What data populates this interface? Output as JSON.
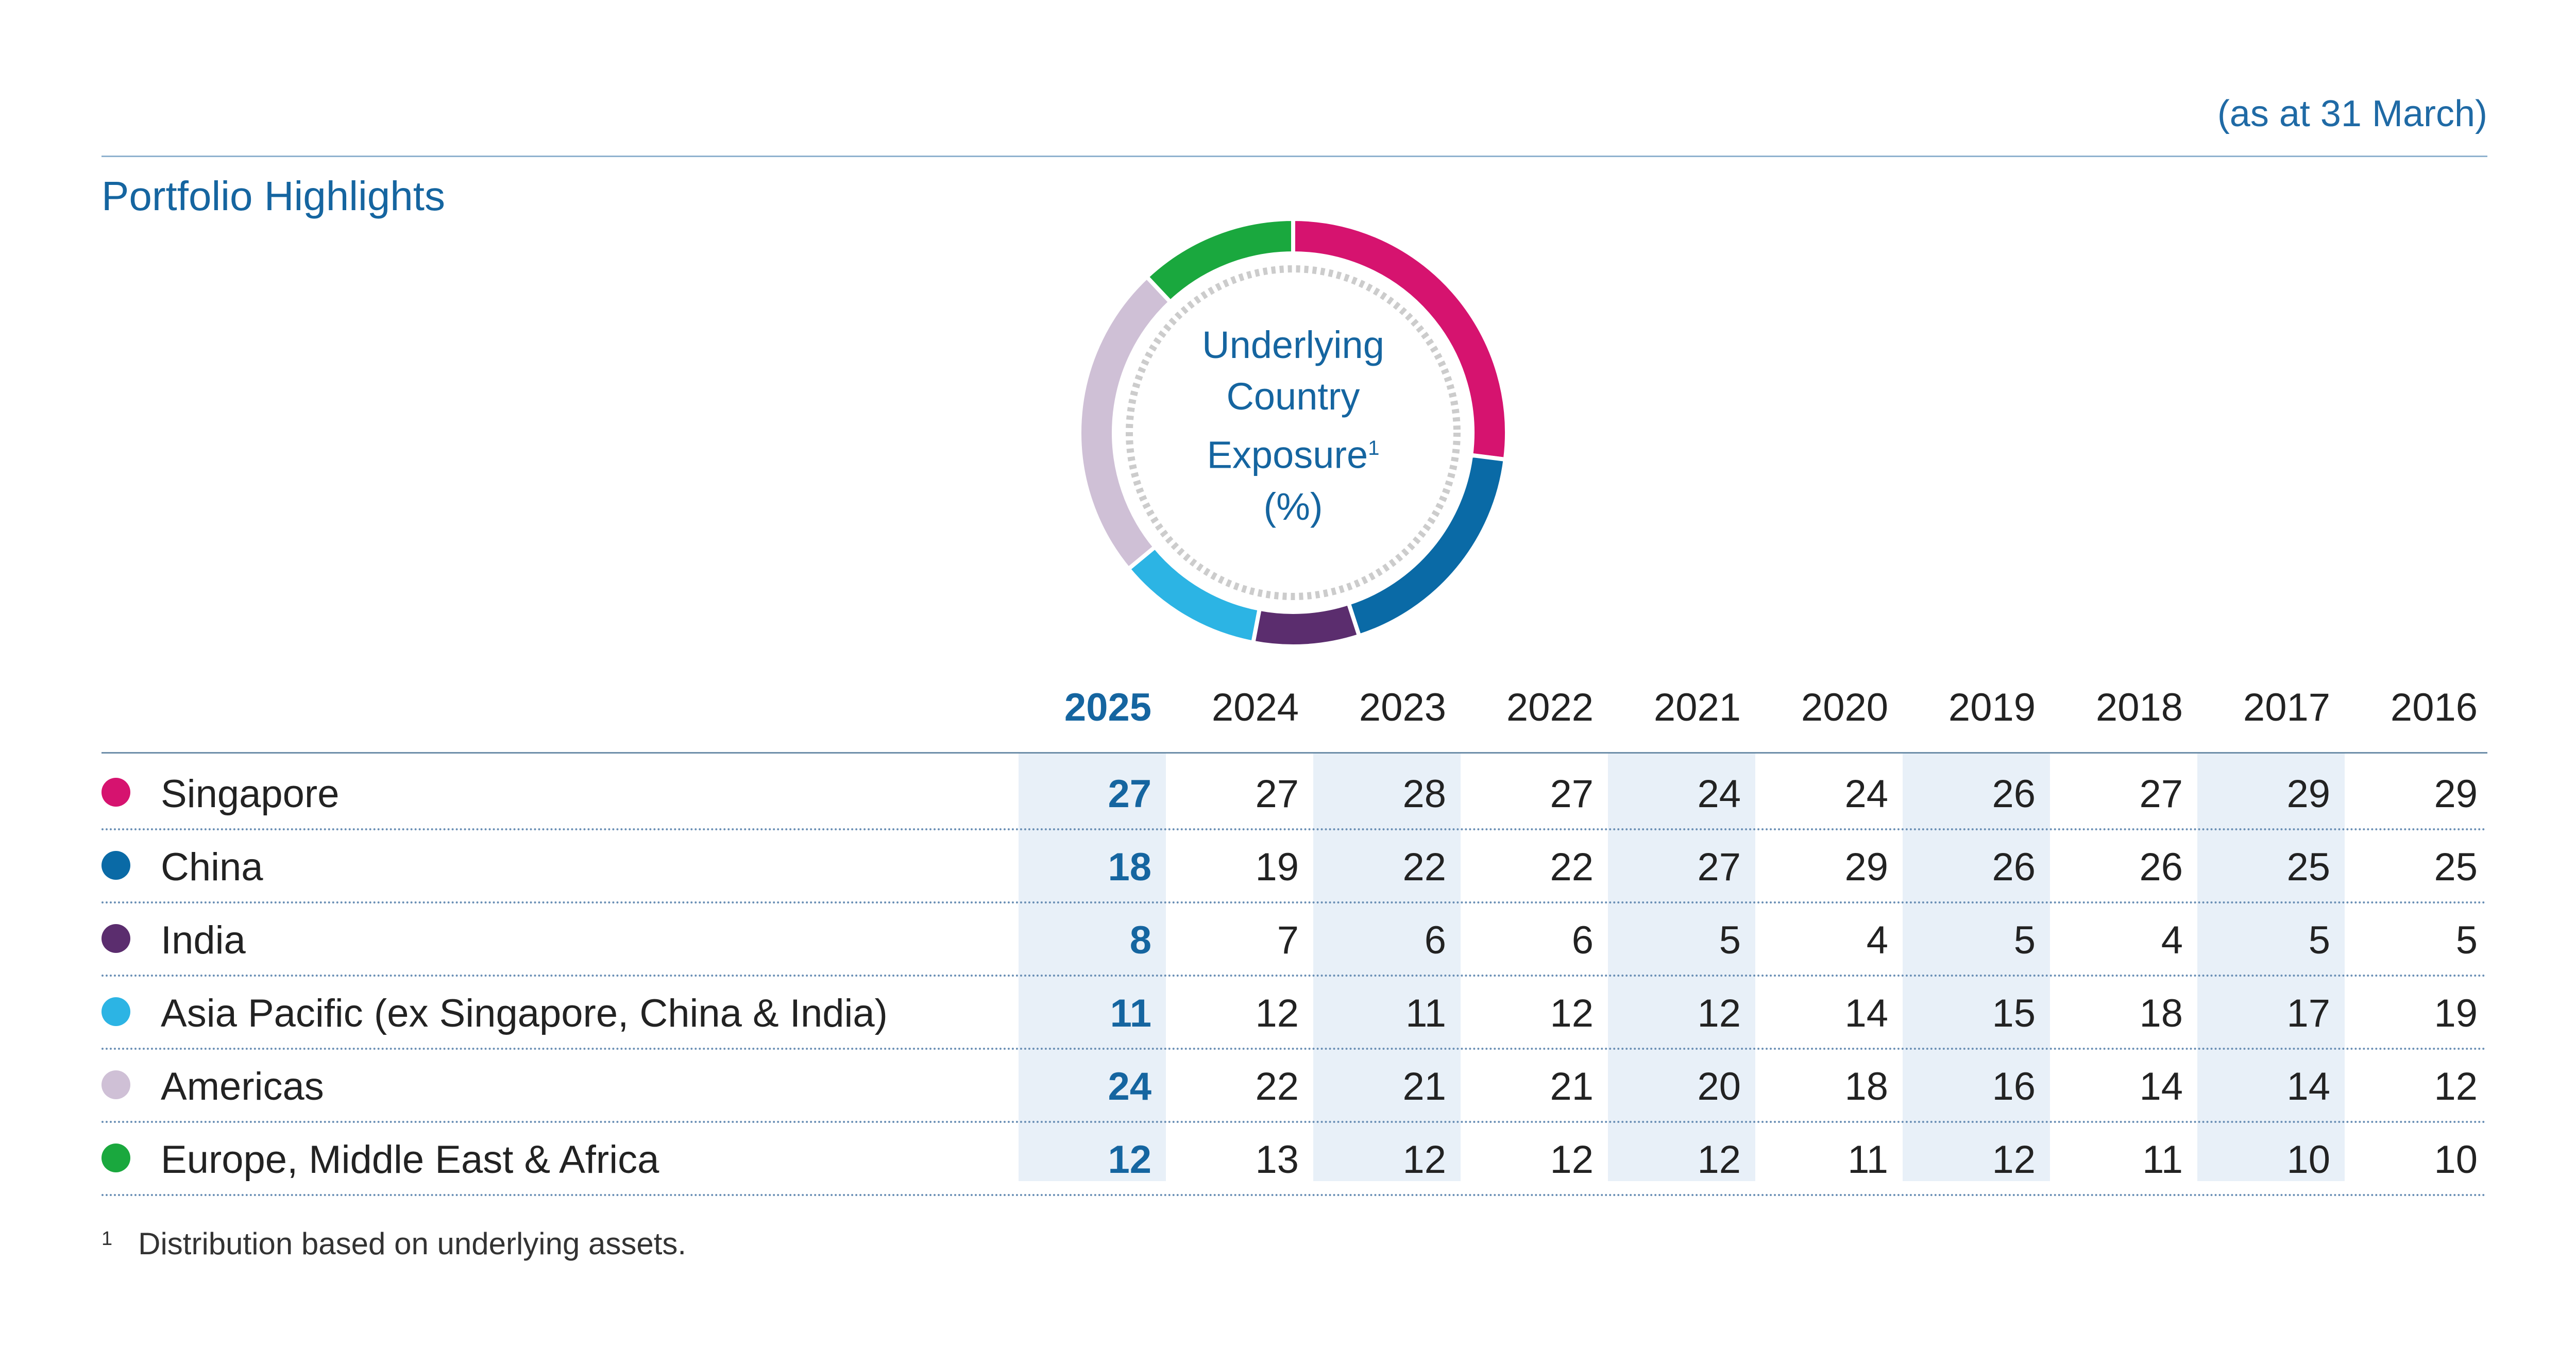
{
  "header": {
    "as_at": "(as at 31 March)",
    "title": "Portfolio Highlights"
  },
  "donut": {
    "label_line1": "Underlying",
    "label_line2": "Country",
    "label_line3": "Exposure",
    "label_sup": "1",
    "label_line4": "(%)"
  },
  "footnote": {
    "marker": "1",
    "text": "Distribution based on underlying assets."
  },
  "chart_data": [
    {
      "type": "pie",
      "style": "donut",
      "title": "Underlying Country Exposure¹ (%)",
      "categories": [
        "Singapore",
        "China",
        "India",
        "Asia Pacific (ex Singapore, China & India)",
        "Americas",
        "Europe, Middle East & Africa"
      ],
      "values": [
        27,
        18,
        8,
        11,
        24,
        12
      ],
      "colors": [
        "#d6136f",
        "#0a6aa6",
        "#5b2d6e",
        "#2cb4e4",
        "#cfc0d6",
        "#1aa83e"
      ]
    },
    {
      "type": "table",
      "columns": [
        "2025",
        "2024",
        "2023",
        "2022",
        "2021",
        "2020",
        "2019",
        "2018",
        "2017",
        "2016"
      ],
      "rows": [
        {
          "name": "Singapore",
          "color": "#d6136f",
          "values": [
            "27",
            "27",
            "28",
            "27",
            "24",
            "24",
            "26",
            "27",
            "29",
            "29"
          ]
        },
        {
          "name": "China",
          "color": "#0a6aa6",
          "values": [
            "18",
            "19",
            "22",
            "22",
            "27",
            "29",
            "26",
            "26",
            "25",
            "25"
          ]
        },
        {
          "name": "India",
          "color": "#5b2d6e",
          "values": [
            "8",
            "7",
            "6",
            "6",
            "5",
            "4",
            "5",
            "4",
            "5",
            "5"
          ]
        },
        {
          "name": "Asia Pacific (ex Singapore, China & India)",
          "color": "#2cb4e4",
          "values": [
            "11",
            "12",
            "11",
            "12",
            "12",
            "14",
            "15",
            "18",
            "17",
            "19"
          ]
        },
        {
          "name": "Americas",
          "color": "#cfc0d6",
          "values": [
            "24",
            "22",
            "21",
            "21",
            "20",
            "18",
            "16",
            "14",
            "14",
            "12"
          ]
        },
        {
          "name": "Europe, Middle East & Africa",
          "color": "#1aa83e",
          "values": [
            "12",
            "13",
            "12",
            "12",
            "12",
            "11",
            "12",
            "11",
            "10",
            "10"
          ]
        }
      ]
    }
  ]
}
